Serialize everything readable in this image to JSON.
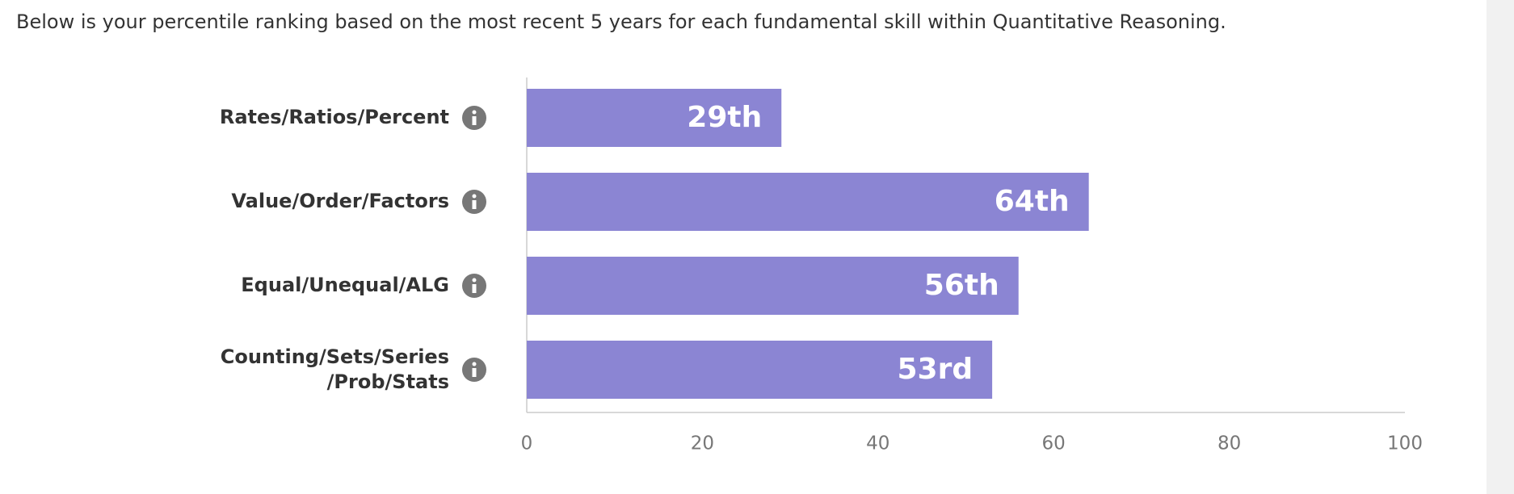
{
  "chart_data": {
    "type": "bar",
    "subtitle": "Below is your percentile ranking based on the most recent 5 years for each fundamental skill within Quantitative Reasoning.",
    "categories": [
      "Rates/Ratios/Percent",
      "Value/Order/Factors",
      "Equal/Unequal/ALG",
      "Counting/Sets/Series\n/Prob/Stats"
    ],
    "values": [
      29,
      64,
      56,
      53
    ],
    "value_labels": [
      "29th",
      "64th",
      "56th",
      "53rd"
    ],
    "color": "#8b85d3",
    "xlim": [
      0,
      100
    ],
    "xticks": [
      0,
      20,
      40,
      60,
      80,
      100
    ],
    "grid": false
  }
}
